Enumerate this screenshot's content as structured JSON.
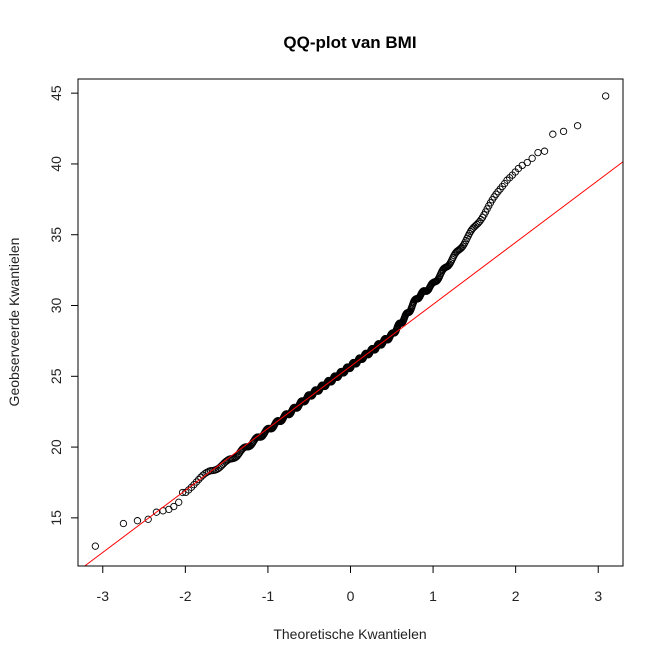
{
  "chart_data": {
    "type": "scatter",
    "title": "QQ-plot van BMI",
    "xlabel": "Theoretische Kwantielen",
    "ylabel": "Geobserveerde Kwantielen",
    "xlim": [
      -3.3,
      3.3
    ],
    "ylim": [
      11.6,
      46.0
    ],
    "xticks": [
      -3,
      -2,
      -1,
      0,
      1,
      2,
      3
    ],
    "yticks": [
      15,
      20,
      25,
      30,
      35,
      40,
      45
    ],
    "grid": false,
    "legend": "none",
    "point_color": "#000000",
    "line_color": "#ff0000",
    "reference_line": {
      "slope": 4.38,
      "intercept": 25.7
    },
    "extreme_points": {
      "x": [
        -3.09,
        -2.75,
        -2.58,
        -2.45,
        -2.35,
        -2.27,
        -2.2,
        -2.14,
        -2.08,
        2.08,
        2.14,
        2.2,
        2.27,
        2.35,
        2.45,
        2.58,
        2.75,
        3.09
      ],
      "y": [
        13.0,
        14.6,
        14.8,
        14.9,
        15.4,
        15.5,
        15.6,
        15.8,
        16.1,
        39.9,
        40.1,
        40.4,
        40.8,
        40.9,
        42.1,
        42.3,
        42.7,
        44.8
      ]
    },
    "quantile_curve": {
      "x": [
        -2.0,
        -1.7,
        -1.5,
        -1.3,
        -1.0,
        -0.7,
        -0.5,
        0.0,
        0.3,
        0.5,
        0.7,
        0.8,
        1.0,
        1.3,
        1.5,
        1.7,
        1.9,
        2.05
      ],
      "y": [
        16.9,
        18.3,
        18.9,
        19.8,
        21.2,
        22.6,
        23.6,
        25.7,
        27.0,
        27.9,
        29.5,
        30.5,
        31.5,
        33.8,
        35.5,
        37.2,
        39.0,
        39.8
      ]
    },
    "n_points": 500
  }
}
